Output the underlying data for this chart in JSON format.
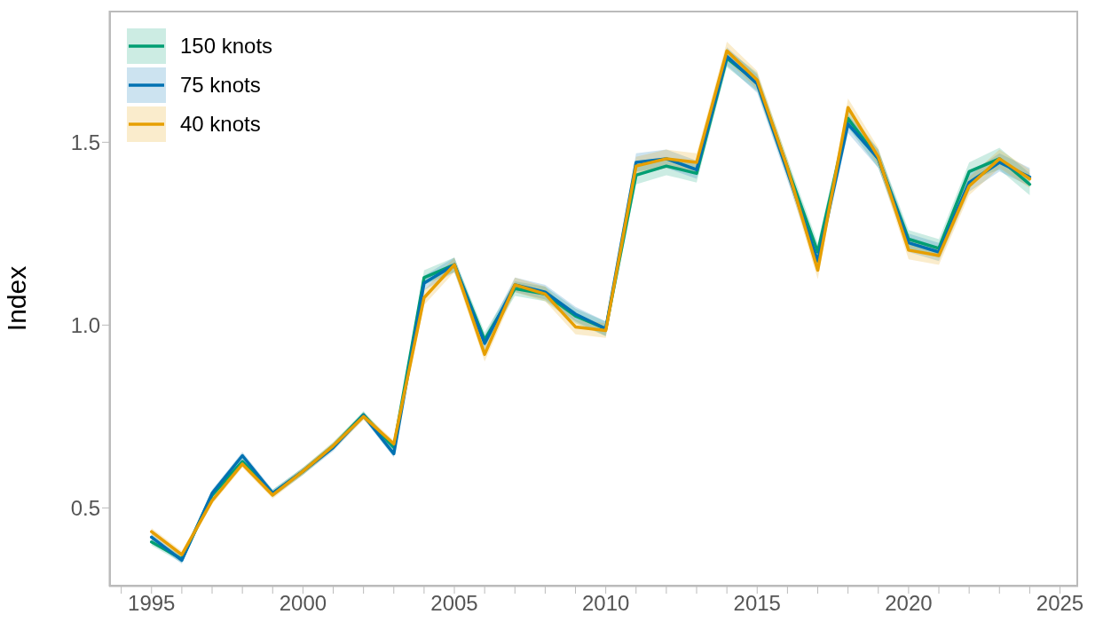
{
  "chart_data": {
    "type": "line",
    "ylabel": "Index",
    "legend": "top left",
    "x": [
      1995,
      1996,
      1997,
      1998,
      1999,
      2000,
      2001,
      2002,
      2003,
      2004,
      2005,
      2006,
      2007,
      2008,
      2009,
      2010,
      2011,
      2012,
      2013,
      2014,
      2015,
      2016,
      2017,
      2018,
      2019,
      2020,
      2021,
      2022,
      2023,
      2024
    ],
    "xlim": [
      1993.6,
      2025.6
    ],
    "ylim": [
      0.285,
      1.86
    ],
    "xticks": [
      {
        "value": 1994,
        "label": null
      },
      1995,
      {
        "value": 1996,
        "label": null
      },
      {
        "value": 1997,
        "label": null
      },
      {
        "value": 1998,
        "label": null
      },
      {
        "value": 1999,
        "label": null
      },
      2000,
      {
        "value": 2001,
        "label": null
      },
      {
        "value": 2002,
        "label": null
      },
      {
        "value": 2003,
        "label": null
      },
      {
        "value": 2004,
        "label": null
      },
      2005,
      {
        "value": 2006,
        "label": null
      },
      {
        "value": 2007,
        "label": null
      },
      {
        "value": 2008,
        "label": null
      },
      {
        "value": 2009,
        "label": null
      },
      2010,
      {
        "value": 2011,
        "label": null
      },
      {
        "value": 2012,
        "label": null
      },
      {
        "value": 2013,
        "label": null
      },
      {
        "value": 2014,
        "label": null
      },
      2015,
      {
        "value": 2016,
        "label": null
      },
      {
        "value": 2017,
        "label": null
      },
      {
        "value": 2018,
        "label": null
      },
      {
        "value": 2019,
        "label": null
      },
      2020,
      {
        "value": 2021,
        "label": null
      },
      {
        "value": 2022,
        "label": null
      },
      {
        "value": 2023,
        "label": null
      },
      {
        "value": 2024,
        "label": null
      },
      2025
    ],
    "yticks": [
      0.5,
      {
        "value": 1,
        "label": "1.0"
      },
      1.5
    ],
    "series": [
      {
        "name": "150 knots",
        "color": "#009e73",
        "values": [
          0.407,
          0.36,
          0.535,
          0.627,
          0.54,
          0.6,
          0.67,
          0.755,
          0.665,
          1.13,
          1.165,
          0.96,
          1.1,
          1.085,
          1.025,
          0.99,
          1.41,
          1.435,
          1.415,
          1.73,
          1.665,
          1.43,
          1.2,
          1.565,
          1.455,
          1.235,
          1.21,
          1.42,
          1.455,
          1.385
        ],
        "lower": [
          0.397,
          0.35,
          0.525,
          0.617,
          0.53,
          0.59,
          0.66,
          0.745,
          0.655,
          1.11,
          1.145,
          0.94,
          1.08,
          1.065,
          1.005,
          0.97,
          1.385,
          1.41,
          1.39,
          1.705,
          1.64,
          1.405,
          1.175,
          1.54,
          1.43,
          1.21,
          1.185,
          1.395,
          1.425,
          1.355
        ],
        "upper": [
          0.417,
          0.37,
          0.545,
          0.637,
          0.55,
          0.61,
          0.68,
          0.765,
          0.675,
          1.15,
          1.185,
          0.98,
          1.12,
          1.105,
          1.045,
          1.01,
          1.435,
          1.46,
          1.44,
          1.755,
          1.69,
          1.455,
          1.225,
          1.59,
          1.48,
          1.26,
          1.235,
          1.445,
          1.485,
          1.415
        ]
      },
      {
        "name": "75 knots",
        "color": "#0072b2",
        "values": [
          0.42,
          0.357,
          0.54,
          0.643,
          0.54,
          0.6,
          0.665,
          0.753,
          0.648,
          1.115,
          1.165,
          0.95,
          1.11,
          1.09,
          1.03,
          0.99,
          1.445,
          1.455,
          1.425,
          1.735,
          1.66,
          1.42,
          1.175,
          1.55,
          1.455,
          1.225,
          1.2,
          1.39,
          1.445,
          1.405
        ],
        "lower": [
          0.41,
          0.347,
          0.53,
          0.633,
          0.53,
          0.59,
          0.655,
          0.743,
          0.638,
          1.095,
          1.145,
          0.93,
          1.09,
          1.07,
          1.01,
          0.97,
          1.42,
          1.43,
          1.4,
          1.71,
          1.635,
          1.395,
          1.15,
          1.525,
          1.43,
          1.2,
          1.175,
          1.365,
          1.42,
          1.38
        ],
        "upper": [
          0.43,
          0.367,
          0.55,
          0.653,
          0.55,
          0.61,
          0.675,
          0.763,
          0.658,
          1.135,
          1.185,
          0.97,
          1.13,
          1.11,
          1.05,
          1.01,
          1.47,
          1.48,
          1.45,
          1.76,
          1.685,
          1.445,
          1.2,
          1.575,
          1.48,
          1.25,
          1.225,
          1.415,
          1.47,
          1.43
        ]
      },
      {
        "name": "40 knots",
        "color": "#e69f00",
        "values": [
          0.435,
          0.372,
          0.52,
          0.62,
          0.535,
          0.6,
          0.67,
          0.75,
          0.675,
          1.075,
          1.165,
          0.92,
          1.11,
          1.085,
          0.995,
          0.985,
          1.435,
          1.455,
          1.445,
          1.75,
          1.67,
          1.43,
          1.15,
          1.595,
          1.46,
          1.205,
          1.19,
          1.38,
          1.455,
          1.4
        ],
        "lower": [
          0.425,
          0.362,
          0.51,
          0.61,
          0.525,
          0.59,
          0.66,
          0.74,
          0.665,
          1.055,
          1.145,
          0.9,
          1.09,
          1.065,
          0.975,
          0.965,
          1.41,
          1.43,
          1.42,
          1.725,
          1.645,
          1.405,
          1.125,
          1.57,
          1.435,
          1.18,
          1.165,
          1.355,
          1.43,
          1.375
        ],
        "upper": [
          0.445,
          0.382,
          0.53,
          0.63,
          0.545,
          0.61,
          0.68,
          0.76,
          0.685,
          1.095,
          1.185,
          0.94,
          1.13,
          1.105,
          1.015,
          1.005,
          1.46,
          1.48,
          1.47,
          1.775,
          1.695,
          1.455,
          1.175,
          1.62,
          1.485,
          1.23,
          1.215,
          1.405,
          1.48,
          1.425
        ]
      }
    ]
  }
}
